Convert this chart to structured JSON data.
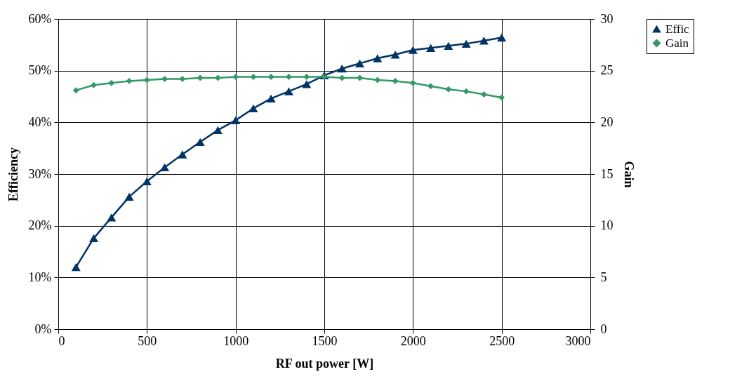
{
  "chart_data": {
    "type": "line",
    "xlabel": "RF out power [W]",
    "ylabel": "Efficiency",
    "y2label": "Gain",
    "x": [
      100,
      200,
      300,
      400,
      500,
      600,
      700,
      800,
      900,
      1000,
      1100,
      1200,
      1300,
      1400,
      1500,
      1600,
      1700,
      1800,
      1900,
      2000,
      2100,
      2200,
      2300,
      2400,
      2500
    ],
    "series": [
      {
        "name": "Effic",
        "color": "#003366",
        "marker": "triangle",
        "values": [
          12.0,
          17.6,
          21.6,
          25.6,
          28.6,
          31.3,
          33.8,
          36.2,
          38.5,
          40.4,
          42.7,
          44.6,
          46.0,
          47.4,
          49.1,
          50.4,
          51.4,
          52.4,
          53.1,
          54.0,
          54.4,
          54.8,
          55.2,
          55.8,
          56.4
        ]
      },
      {
        "name": "Gain",
        "color": "#339966",
        "marker": "diamond",
        "axis": "y2",
        "values": [
          23.1,
          23.6,
          23.8,
          24.0,
          24.1,
          24.2,
          24.2,
          24.3,
          24.3,
          24.4,
          24.4,
          24.4,
          24.4,
          24.4,
          24.4,
          24.3,
          24.3,
          24.1,
          24.0,
          23.8,
          23.5,
          23.2,
          23.0,
          22.7,
          22.4
        ]
      }
    ],
    "xlim": [
      0,
      3000
    ],
    "xticks": [
      0,
      500,
      1000,
      1500,
      2000,
      2500,
      3000
    ],
    "ylim": [
      0,
      60
    ],
    "yticks": [
      {
        "value": 0,
        "label": "0%"
      },
      {
        "value": 10,
        "label": "10%"
      },
      {
        "value": 20,
        "label": "20%"
      },
      {
        "value": 30,
        "label": "30%"
      },
      {
        "value": 40,
        "label": "40%"
      },
      {
        "value": 50,
        "label": "50%"
      },
      {
        "value": 60,
        "label": "60%"
      }
    ],
    "y2lim": [
      0,
      30
    ],
    "y2ticks": [
      0,
      5,
      10,
      15,
      20,
      25,
      30
    ],
    "grid": true,
    "legend": "right",
    "line_style": "solid"
  }
}
